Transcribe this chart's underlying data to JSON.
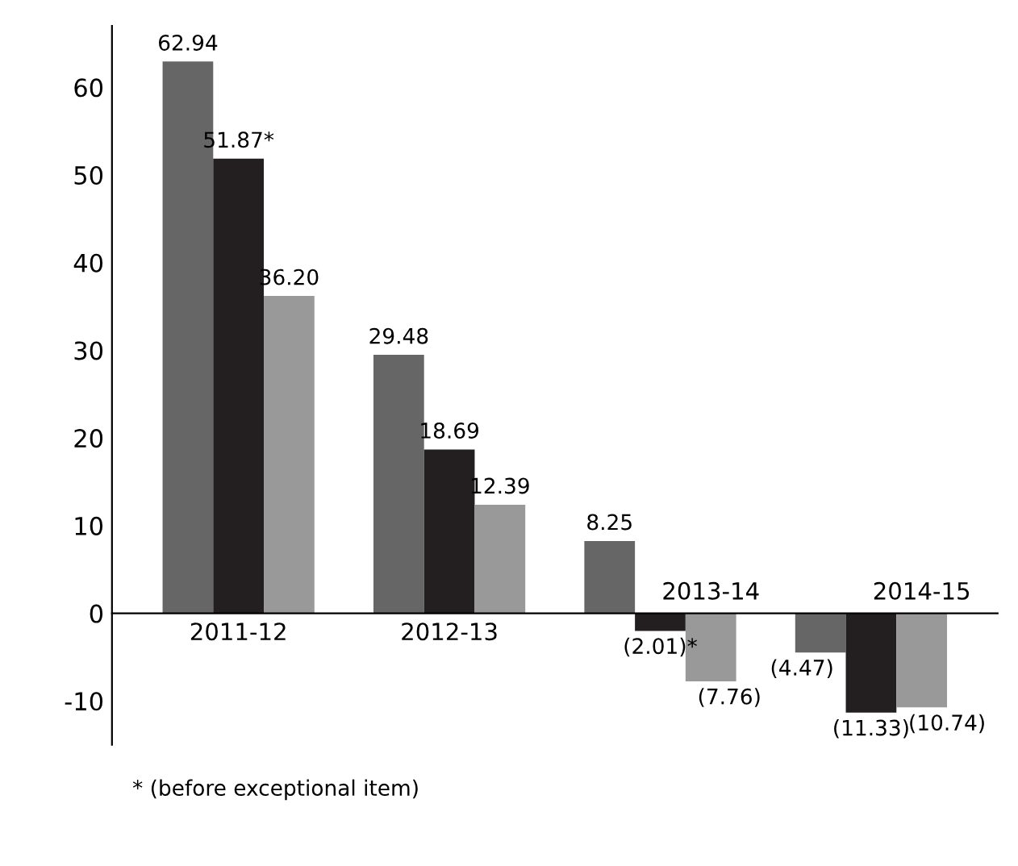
{
  "chart_data": {
    "type": "bar",
    "categories": [
      "2011-12",
      "2012-13",
      "2013-14",
      "2014-15"
    ],
    "series": [
      {
        "color": "#666666",
        "values": [
          62.94,
          29.48,
          8.25,
          -4.47
        ],
        "value_labels": [
          "62.94",
          "29.48",
          "8.25",
          "(4.47)"
        ]
      },
      {
        "color": "#231f20",
        "values": [
          51.87,
          18.69,
          -2.01,
          -11.33
        ],
        "value_labels": [
          "51.87*",
          "18.69",
          "(2.01)*",
          "(11.33)"
        ]
      },
      {
        "color": "#999999",
        "values": [
          36.2,
          12.39,
          -7.76,
          -10.74
        ],
        "value_labels": [
          "36.20",
          "12.39",
          "(7.76)",
          "(10.74)"
        ]
      }
    ],
    "ylim": [
      -15,
      67
    ],
    "yticks": [
      -10,
      0,
      10,
      20,
      30,
      40,
      50,
      60
    ],
    "grid": false,
    "legend": false,
    "annotations": [
      "* (before exceptional item)"
    ]
  }
}
